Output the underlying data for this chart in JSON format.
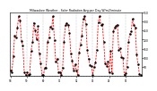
{
  "title": "Milwaukee Weather - Solar Radiation Avg per Day W/m2/minute",
  "bg_color": "#ffffff",
  "line_color": "#ff0000",
  "marker_color": "#000000",
  "grid_color": "#888888",
  "ymin": 0,
  "ymax": 350,
  "yticks": [
    50,
    100,
    150,
    200,
    250,
    300,
    350
  ],
  "values": [
    180,
    140,
    60,
    200,
    230,
    195,
    160,
    120,
    75,
    40,
    20,
    60,
    90,
    155,
    210,
    250,
    280,
    310,
    290,
    255,
    200,
    150,
    80,
    30,
    15,
    70,
    140,
    200,
    265,
    290,
    275,
    240,
    185,
    120,
    55,
    20,
    10,
    60,
    130,
    190,
    255,
    285,
    270,
    235,
    180,
    110,
    50,
    15,
    8,
    55,
    120,
    185,
    250,
    280,
    265,
    225,
    170,
    100,
    45,
    10,
    5,
    50,
    115,
    175,
    240,
    270,
    255,
    215,
    160,
    90,
    40,
    8,
    20,
    80,
    155,
    215,
    270,
    295,
    275,
    235,
    175,
    105,
    50,
    15,
    10,
    65,
    130,
    195,
    255,
    285,
    268,
    228,
    172,
    102,
    48,
    12,
    40,
    100,
    165,
    225,
    275,
    300,
    282,
    240,
    182,
    112,
    54,
    18,
    12,
    68,
    135,
    198,
    258,
    288,
    270,
    230,
    174,
    104,
    50,
    14
  ]
}
